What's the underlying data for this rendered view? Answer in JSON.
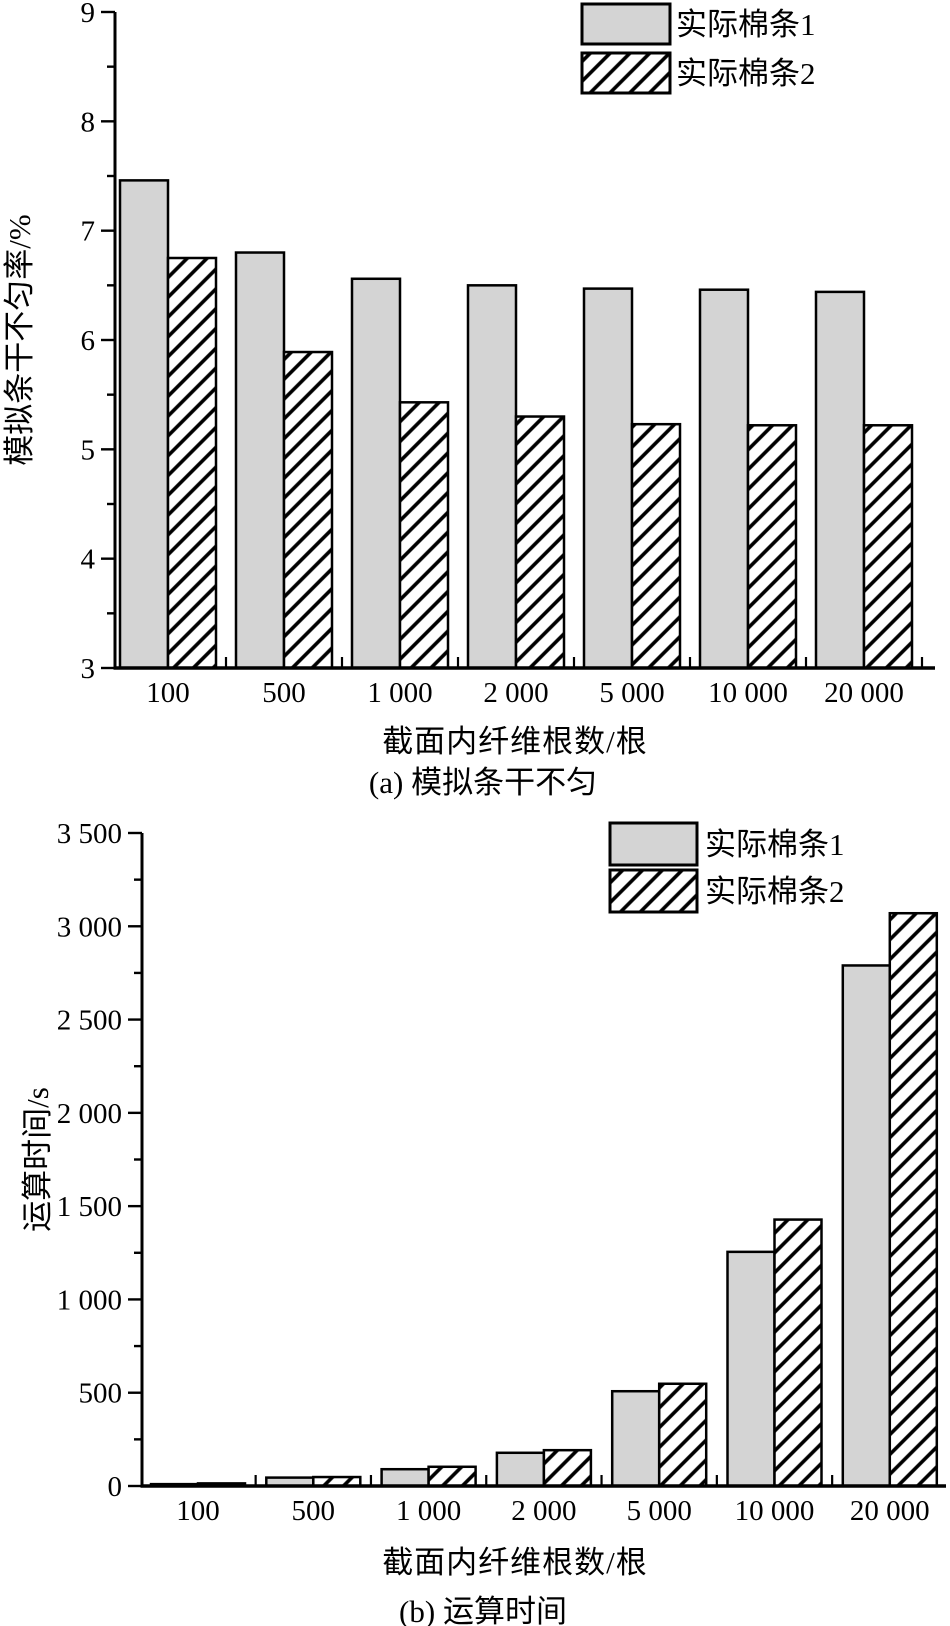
{
  "figure": {
    "panel_count": 2,
    "background": "#ffffff"
  },
  "colors": {
    "bar_fill_series1": "#d4d4d4",
    "bar_stroke": "#000000",
    "hatch_line": "#000000",
    "hatch_background": "#ffffff",
    "axis": "#000000",
    "text": "#000000"
  },
  "chart_data": [
    {
      "id": "a",
      "type": "bar",
      "caption": "(a) 模拟条干不匀",
      "xlabel": "截面内纤维根数/根",
      "ylabel": "模拟条干不匀率/%",
      "categories": [
        "100",
        "500",
        "1 000",
        "2 000",
        "5 000",
        "10 000",
        "20 000"
      ],
      "series": [
        {
          "name": "实际棉条1",
          "style": "solid-gray",
          "values": [
            7.46,
            6.8,
            6.56,
            6.5,
            6.47,
            6.46,
            6.44
          ]
        },
        {
          "name": "实际棉条2",
          "style": "diagonal-hatch",
          "values": [
            6.75,
            5.89,
            5.43,
            5.3,
            5.23,
            5.22,
            5.22
          ]
        }
      ],
      "ylim": [
        3,
        9
      ],
      "ytick_step": 1,
      "ytick_minor_step": 0.5,
      "ytick_labels": [
        "3",
        "4",
        "5",
        "6",
        "7",
        "8",
        "9"
      ],
      "legend_position": "top-right",
      "grid": false
    },
    {
      "id": "b",
      "type": "bar",
      "caption": "(b) 运算时间",
      "xlabel": "截面内纤维根数/根",
      "ylabel": "运算时间/s",
      "categories": [
        "100",
        "500",
        "1 000",
        "2 000",
        "5 000",
        "10 000",
        "20 000"
      ],
      "series": [
        {
          "name": "实际棉条1",
          "style": "solid-gray",
          "values": [
            10,
            45,
            90,
            178,
            508,
            1255,
            2790
          ]
        },
        {
          "name": "实际棉条2",
          "style": "diagonal-hatch",
          "values": [
            14,
            48,
            103,
            192,
            548,
            1428,
            3070
          ]
        }
      ],
      "ylim": [
        0,
        3500
      ],
      "ytick_step": 500,
      "ytick_minor_step": 250,
      "ytick_labels": [
        "0",
        "500",
        "1 000",
        "1 500",
        "2 000",
        "2 500",
        "3 000",
        "3 500"
      ],
      "legend_position": "top-right",
      "grid": false
    }
  ]
}
